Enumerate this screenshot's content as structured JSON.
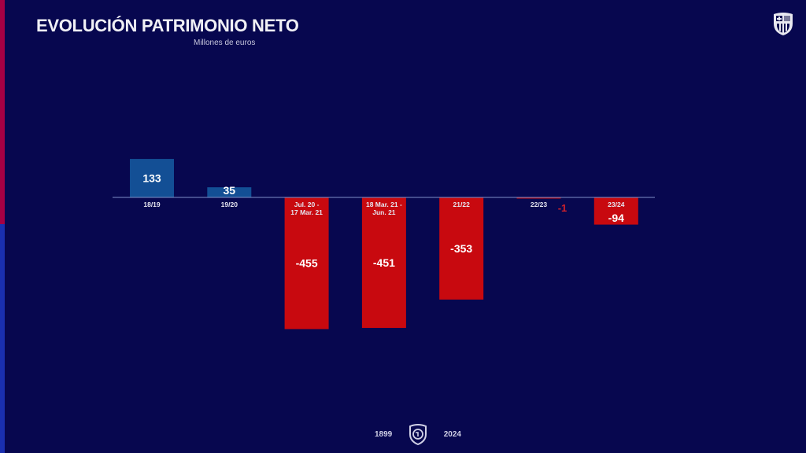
{
  "title": "EVOLUCIÓN PATRIMONIO NETO",
  "subtitle": "Millones de euros",
  "footer": {
    "start_year": "1899",
    "end_year": "2024"
  },
  "icons": {
    "top_right": "fc-barcelona-crest-icon",
    "footer": "125-anniversary-crest-icon"
  },
  "colors": {
    "background": "#07074f",
    "positive": "#134f95",
    "negative": "#c8090f",
    "accent_red": "#a50044",
    "accent_blue": "#1a2fb0"
  },
  "chart_data": {
    "type": "bar",
    "title": "EVOLUCIÓN PATRIMONIO NETO",
    "subtitle": "Millones de euros",
    "categories": [
      [
        "18/19"
      ],
      [
        "19/20"
      ],
      [
        "Jul. 20 -",
        "17 Mar. 21"
      ],
      [
        "18 Mar. 21 -",
        "Jun. 21"
      ],
      [
        "21/22"
      ],
      [
        "22/23"
      ],
      [
        "23/24"
      ]
    ],
    "values": [
      133,
      35,
      -455,
      -451,
      -353,
      -1,
      -94
    ],
    "labels": [
      "133",
      "35",
      "-455",
      "-451",
      "-353",
      "-1",
      "-94"
    ],
    "grid": false,
    "legend": "none"
  }
}
